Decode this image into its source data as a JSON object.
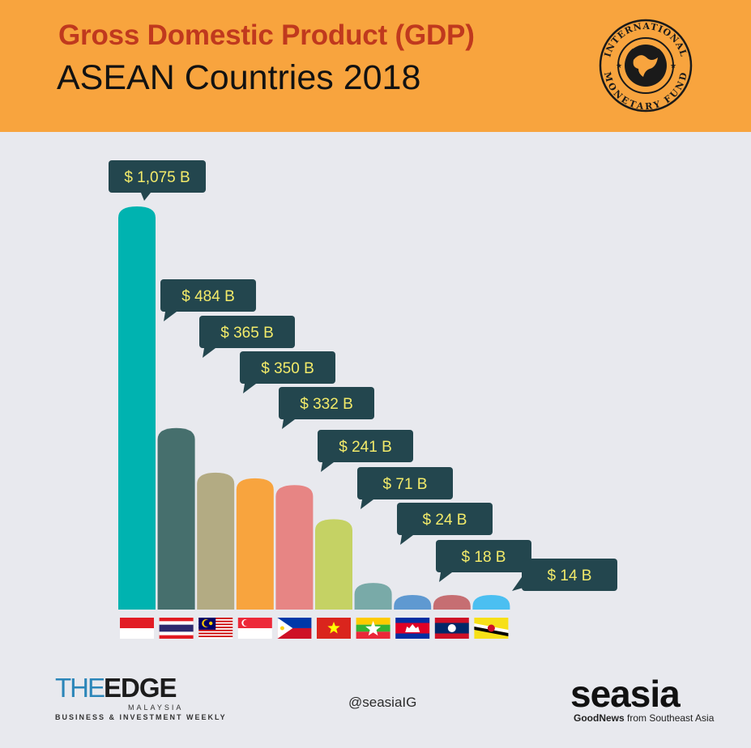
{
  "header": {
    "title": "Gross Domestic Product (GDP)",
    "subtitle": "ASEAN Countries 2018",
    "seal_text_top": "INTERNATIONAL",
    "seal_text_bottom": "MONETARY FUND"
  },
  "chart_data": {
    "type": "bar",
    "title": "Gross Domestic Product (GDP)",
    "subtitle": "ASEAN Countries 2018",
    "xlabel": "",
    "ylabel": "",
    "unit": "B USD",
    "categories": [
      "Indonesia",
      "Thailand",
      "Malaysia",
      "Singapore",
      "Philippines",
      "Vietnam",
      "Myanmar",
      "Cambodia",
      "Laos",
      "Brunei"
    ],
    "values": [
      1075,
      484,
      365,
      350,
      332,
      241,
      71,
      24,
      18,
      14
    ],
    "value_labels": [
      "$ 1,075 B",
      "$ 484 B",
      "$ 365 B",
      "$ 350 B",
      "$ 332 B",
      "$ 241 B",
      "$ 71 B",
      "$ 24 B",
      "$ 18 B",
      "$ 14 B"
    ],
    "bar_colors": [
      "#00b3b0",
      "#466f6d",
      "#b3ab83",
      "#f8a43e",
      "#e78584",
      "#c5d264",
      "#79aaa8",
      "#5f99d1",
      "#c66e72",
      "#4bbff1"
    ],
    "flags": [
      "indonesia",
      "thailand",
      "malaysia",
      "singapore",
      "philippines",
      "vietnam",
      "myanmar",
      "cambodia",
      "laos",
      "brunei"
    ],
    "ylim": [
      0,
      1075
    ],
    "grid": false,
    "legend": "none"
  },
  "footer": {
    "edge_the": "THE",
    "edge_edge": "EDGE",
    "edge_country": "MALAYSIA",
    "edge_tagline": "BUSINESS & INVESTMENT WEEKLY",
    "handle": "@seasiaIG",
    "seasia_logo": "seasia",
    "seasia_tag_bold": "GoodNews",
    "seasia_tag_rest": " from Southeast Asia"
  },
  "colors": {
    "header_bg": "#f8a43e",
    "title": "#c0391e",
    "body_bg": "#e8e9ee",
    "callout_bg": "#23464e",
    "callout_text": "#f3eb6a"
  }
}
